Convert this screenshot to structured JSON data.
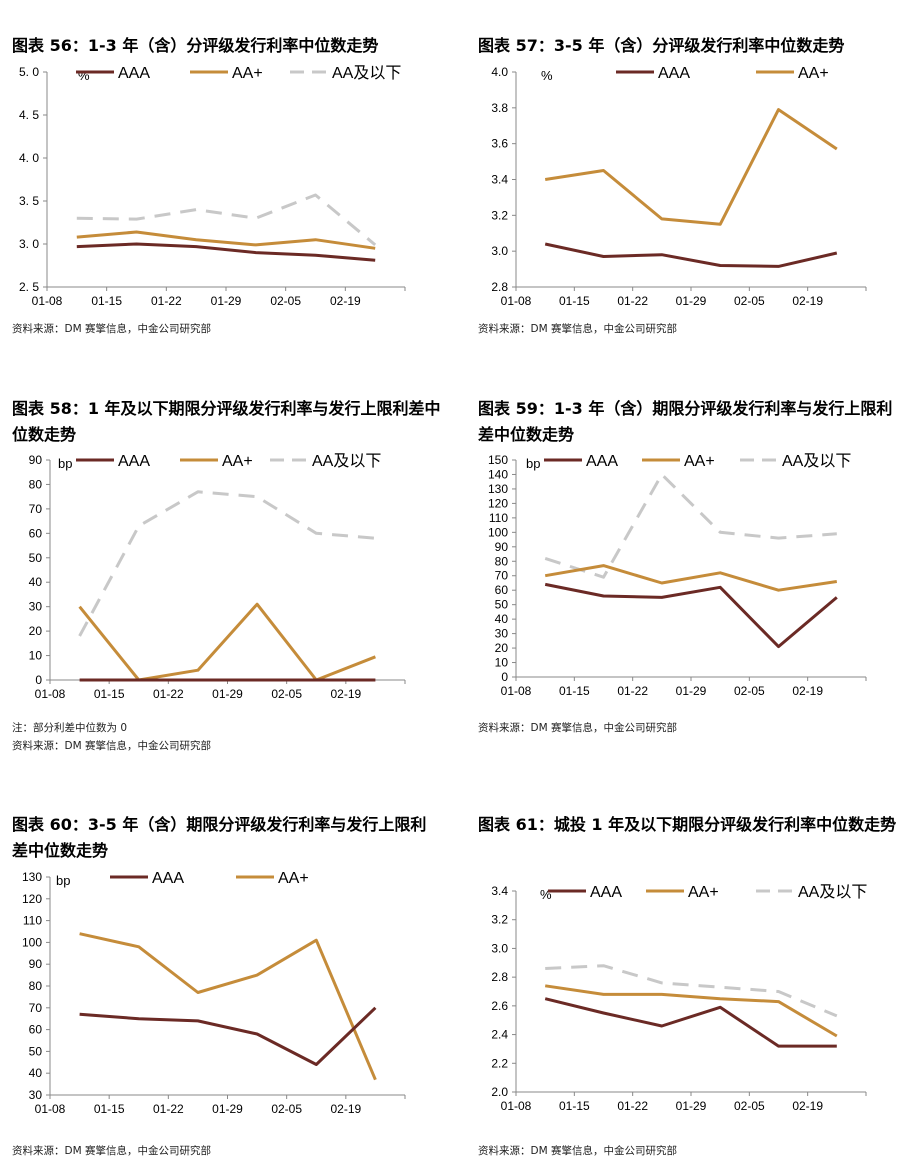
{
  "charts": [
    {
      "id": "c56",
      "title": "图表 56：1-3 年（含）分评级发行利率中位数走势",
      "source": "资料来源：DM 赛擎信息，中金公司研究部",
      "note": "",
      "unit": "%",
      "chart_data": {
        "type": "line",
        "categories": [
          "01-08",
          "01-15",
          "01-22",
          "01-29",
          "02-05",
          "02-19"
        ],
        "ylim": [
          2.5,
          5.0
        ],
        "yticks": [
          "2. 5",
          "3. 0",
          "3. 5",
          "4. 0",
          "4. 5",
          "5. 0"
        ],
        "legend_position": "top",
        "series": [
          {
            "name": "AAA",
            "values": [
              2.97,
              3.0,
              2.97,
              2.9,
              2.87,
              2.81
            ]
          },
          {
            "name": "AA+",
            "values": [
              3.08,
              3.14,
              3.05,
              2.99,
              3.05,
              2.95
            ]
          },
          {
            "name": "AA及以下",
            "values": [
              3.3,
              3.29,
              3.4,
              3.3,
              3.57,
              2.99
            ]
          }
        ]
      }
    },
    {
      "id": "c57",
      "title": "图表 57：3-5 年（含）分评级发行利率中位数走势",
      "source": "资料来源：DM 赛擎信息，中金公司研究部",
      "note": "",
      "unit": "%",
      "chart_data": {
        "type": "line",
        "categories": [
          "01-08",
          "01-15",
          "01-22",
          "01-29",
          "02-05",
          "02-19"
        ],
        "ylim": [
          2.8,
          4.0
        ],
        "yticks": [
          "2.8",
          "3.0",
          "3.2",
          "3.4",
          "3.6",
          "3.8",
          "4.0"
        ],
        "legend_position": "top",
        "series": [
          {
            "name": "AAA",
            "values": [
              3.04,
              2.97,
              2.98,
              2.92,
              2.915,
              2.99
            ]
          },
          {
            "name": "AA+",
            "values": [
              3.4,
              3.45,
              3.18,
              3.15,
              3.79,
              3.57
            ]
          }
        ]
      }
    },
    {
      "id": "c58",
      "title": "图表 58：1 年及以下期限分评级发行利率与发行上限利差中位数走势",
      "source": "资料来源：DM 赛擎信息，中金公司研究部",
      "note": "注：部分利差中位数为 0",
      "unit": "bp",
      "chart_data": {
        "type": "line",
        "categories": [
          "01-08",
          "01-15",
          "01-22",
          "01-29",
          "02-05",
          "02-19"
        ],
        "ylim": [
          0,
          90
        ],
        "yticks": [
          "0",
          "10",
          "20",
          "30",
          "40",
          "50",
          "60",
          "70",
          "80",
          "90"
        ],
        "legend_position": "top",
        "series": [
          {
            "name": "AAA",
            "values": [
              0,
              0,
              0,
              0,
              0,
              0
            ]
          },
          {
            "name": "AA+",
            "values": [
              30,
              0,
              4,
              31,
              0,
              9.5
            ]
          },
          {
            "name": "AA及以下",
            "values": [
              18,
              63,
              77,
              75,
              60,
              58
            ]
          }
        ]
      }
    },
    {
      "id": "c59",
      "title": "图表 59：1-3 年（含）期限分评级发行利率与发行上限利差中位数走势",
      "source": "资料来源：DM 赛擎信息，中金公司研究部",
      "note": "",
      "unit": "bp",
      "chart_data": {
        "type": "line",
        "categories": [
          "01-08",
          "01-15",
          "01-22",
          "01-29",
          "02-05",
          "02-19"
        ],
        "ylim": [
          0,
          150
        ],
        "yticks": [
          "0",
          "10",
          "20",
          "30",
          "40",
          "50",
          "60",
          "70",
          "80",
          "90",
          "100",
          "110",
          "120",
          "130",
          "140",
          "150"
        ],
        "legend_position": "top",
        "series": [
          {
            "name": "AAA",
            "values": [
              64,
              56,
              55,
              62,
              21,
              55
            ]
          },
          {
            "name": "AA+",
            "values": [
              70,
              77,
              65,
              72,
              60,
              66
            ]
          },
          {
            "name": "AA及以下",
            "values": [
              82,
              69,
              140,
              100,
              96,
              99
            ]
          }
        ]
      }
    },
    {
      "id": "c60",
      "title": "图表 60：3-5 年（含）期限分评级发行利率与发行上限利差中位数走势",
      "source": "资料来源：DM 赛擎信息，中金公司研究部",
      "note": "",
      "unit": "bp",
      "chart_data": {
        "type": "line",
        "categories": [
          "01-08",
          "01-15",
          "01-22",
          "01-29",
          "02-05",
          "02-19"
        ],
        "ylim": [
          30,
          130
        ],
        "yticks": [
          "30",
          "40",
          "50",
          "60",
          "70",
          "80",
          "90",
          "100",
          "110",
          "120",
          "130"
        ],
        "legend_position": "top",
        "series": [
          {
            "name": "AAA",
            "values": [
              67,
              65,
              64,
              58,
              44,
              70
            ]
          },
          {
            "name": "AA+",
            "values": [
              104,
              98,
              77,
              85,
              101,
              37
            ]
          }
        ]
      }
    },
    {
      "id": "c61",
      "title": "图表 61：城投 1 年及以下期限分评级发行利率中位数走势",
      "source": "资料来源：DM 赛擎信息，中金公司研究部",
      "note": "",
      "unit": "%",
      "chart_data": {
        "type": "line",
        "categories": [
          "01-08",
          "01-15",
          "01-22",
          "01-29",
          "02-05",
          "02-19"
        ],
        "ylim": [
          2.0,
          3.4
        ],
        "yticks": [
          "2.0",
          "2.2",
          "2.4",
          "2.6",
          "2.8",
          "3.0",
          "3.2",
          "3.4"
        ],
        "legend_position": "top",
        "series": [
          {
            "name": "AAA",
            "values": [
              2.65,
              2.55,
              2.46,
              2.59,
              2.32,
              2.32
            ]
          },
          {
            "name": "AA+",
            "values": [
              2.74,
              2.68,
              2.68,
              2.65,
              2.63,
              2.39
            ]
          },
          {
            "name": "AA及以下",
            "values": [
              2.86,
              2.88,
              2.76,
              2.73,
              2.7,
              2.53
            ]
          }
        ]
      }
    }
  ],
  "colors": {
    "AAA": "#6b2a25",
    "AA+": "#c58c3a",
    "AA及以下": "#c8c8c8"
  }
}
